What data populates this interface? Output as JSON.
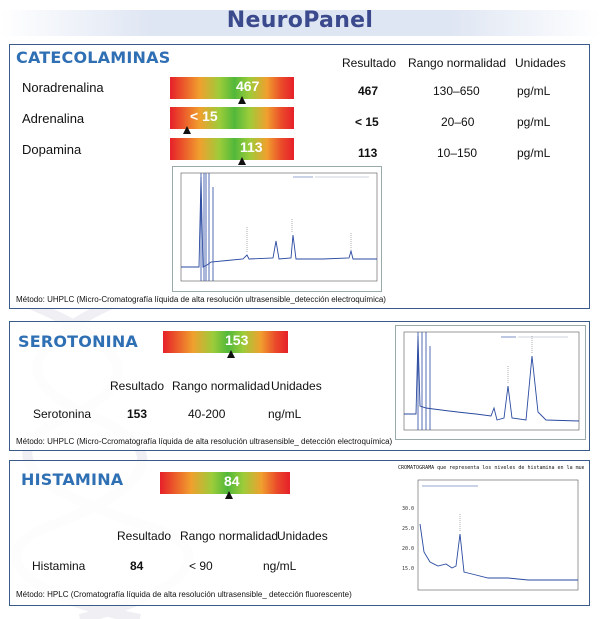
{
  "title": "NeuroPanel",
  "catecolaminas": {
    "title": "CATECOLAMINAS",
    "headers": {
      "resultado": "Resultado",
      "rango": "Rango normalidad",
      "unidades": "Unidades"
    },
    "rows": [
      {
        "name": "Noradrenalina",
        "bar_label": "467",
        "marker_fraction": 0.58,
        "result": "467",
        "range": "130–650",
        "units": "pg/mL"
      },
      {
        "name": "Adrenalina",
        "bar_label": "< 15",
        "marker_fraction": 0.14,
        "result": "< 15",
        "range": "20–60",
        "units": "pg/mL"
      },
      {
        "name": "Dopamina",
        "bar_label": "113",
        "marker_fraction": 0.58,
        "result": "113",
        "range": "10–150",
        "units": "pg/mL"
      }
    ],
    "method": "Método: UHPLC (Micro-Cromatografía líquida de alta resolución ultrasensible_detección electroquímica)"
  },
  "serotonina": {
    "title": "SEROTONINA",
    "bar_label": "153",
    "marker_fraction": 0.54,
    "headers": {
      "resultado": "Resultado",
      "rango": "Rango normalidad",
      "unidades": "Unidades"
    },
    "row": {
      "name": "Serotonina",
      "result": "153",
      "range": "40-200",
      "units": "ng/mL"
    },
    "method": "Método: UHPLC (Micro-Ccromatografía líquida de alta resolución ultrasensible_ detección electroquímica)"
  },
  "histamina": {
    "title": "HISTAMINA",
    "bar_label": "84",
    "marker_fraction": 0.53,
    "headers": {
      "resultado": "Resultado",
      "rango": "Rango normalidad",
      "unidades": "Unidades"
    },
    "row": {
      "name": "Histamina",
      "result": "84",
      "range": "< 90",
      "units": "ng/mL"
    },
    "method": "Método: HPLC (Cromatografía líquida de alta resolución ultrasensible_ detección fluorescente)",
    "chromatogram_caption": "CROMATOGRAMA que representa los niveles de histamina en la muestra"
  },
  "colors": {
    "title": "#3a4a8c",
    "section_title": "#2f6fb3",
    "border": "#3a5a8a",
    "trace": "#2a4aa0"
  }
}
